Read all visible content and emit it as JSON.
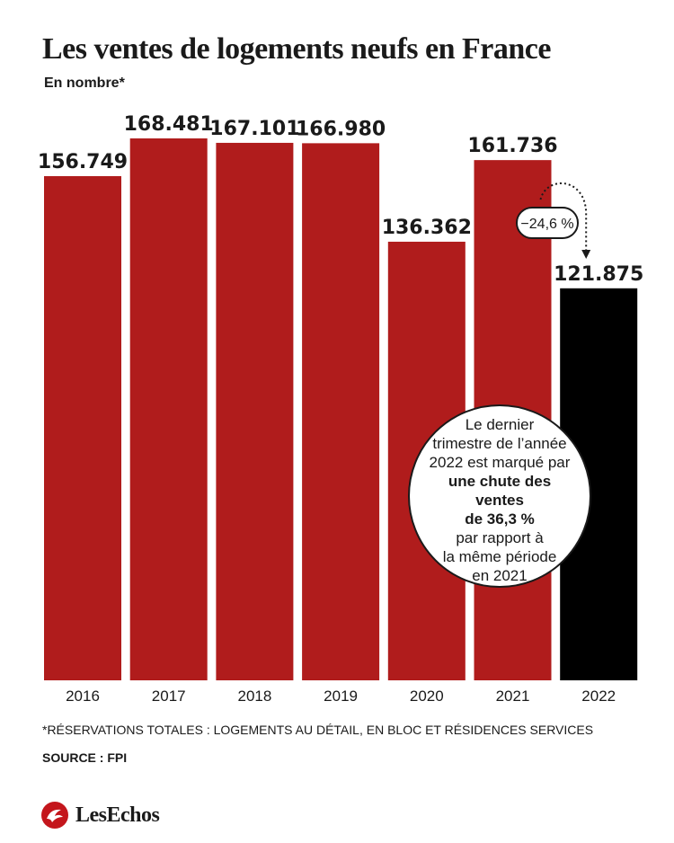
{
  "title": "Les ventes de logements neufs en France",
  "subtitle": "En nombre*",
  "chart_data": {
    "type": "bar",
    "categories": [
      "2016",
      "2017",
      "2018",
      "2019",
      "2020",
      "2021",
      "2022"
    ],
    "values": [
      156749,
      168481,
      167101,
      166980,
      136362,
      161736,
      121875
    ],
    "value_labels": [
      "156.749",
      "168.481",
      "167.101",
      "166.980",
      "136.362",
      "161.736",
      "121.875"
    ],
    "ylim": [
      0,
      168481
    ],
    "bar_colors": [
      "#b01c1c",
      "#b01c1c",
      "#b01c1c",
      "#b01c1c",
      "#b01c1c",
      "#b01c1c",
      "#000000"
    ],
    "annotation": "−24,6 %",
    "grid": false
  },
  "callout": {
    "line1": "Le dernier",
    "line2": "trimestre de l’année",
    "line3": "2022 est marqué par",
    "bold1": "une chute des ventes",
    "bold2": "de 36,3 %",
    "line4": "par rapport à",
    "line5": "la même période",
    "line6": "en 2021"
  },
  "footnote": "*RÉSERVATIONS TOTALES : LOGEMENTS AU DÉTAIL, EN BLOC ET RÉSIDENCES SERVICES",
  "source": "SOURCE : FPI",
  "logo": {
    "text": "LesEchos",
    "icon": "les-echos-logo-icon"
  },
  "colors": {
    "bar": "#b01c1c",
    "highlight_bar": "#000000",
    "text": "#1a1a1a"
  }
}
